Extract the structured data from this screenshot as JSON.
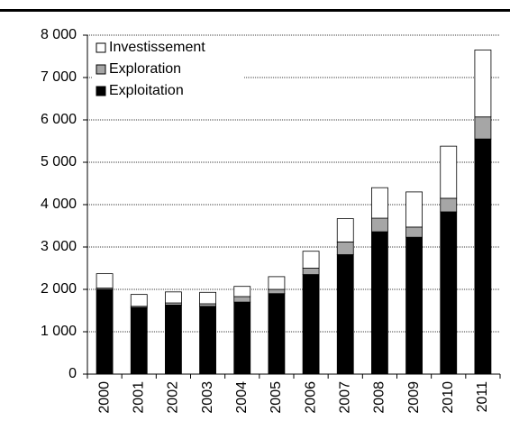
{
  "chart_data": {
    "type": "stacked-bar",
    "categories": [
      "2000",
      "2001",
      "2002",
      "2003",
      "2004",
      "2005",
      "2006",
      "2007",
      "2008",
      "2009",
      "2010",
      "2011"
    ],
    "series": [
      {
        "name": "Exploitation",
        "color": "#000000",
        "values": [
          2000,
          1570,
          1630,
          1600,
          1700,
          1900,
          2350,
          2820,
          3360,
          3230,
          3830,
          5550
        ]
      },
      {
        "name": "Exploration",
        "color": "#a6a6a6",
        "values": [
          30,
          30,
          50,
          60,
          130,
          100,
          150,
          300,
          320,
          240,
          320,
          520
        ]
      },
      {
        "name": "Investissement",
        "color": "#ffffff",
        "values": [
          340,
          280,
          260,
          270,
          240,
          300,
          400,
          550,
          720,
          830,
          1230,
          1580
        ]
      }
    ],
    "ylim": [
      0,
      8000
    ],
    "yticks": [
      0,
      {
        "value": 1000,
        "label": "1 000"
      },
      {
        "value": 2000,
        "label": "2 000"
      },
      {
        "value": 3000,
        "label": "3 000"
      },
      {
        "value": 4000,
        "label": "4 000"
      },
      {
        "value": 5000,
        "label": "5 000"
      },
      {
        "value": 6000,
        "label": "6 000"
      },
      {
        "value": 7000,
        "label": "7 000"
      },
      {
        "value": 8000,
        "label": "8 000"
      }
    ],
    "grid": true,
    "legend": "upper left"
  }
}
